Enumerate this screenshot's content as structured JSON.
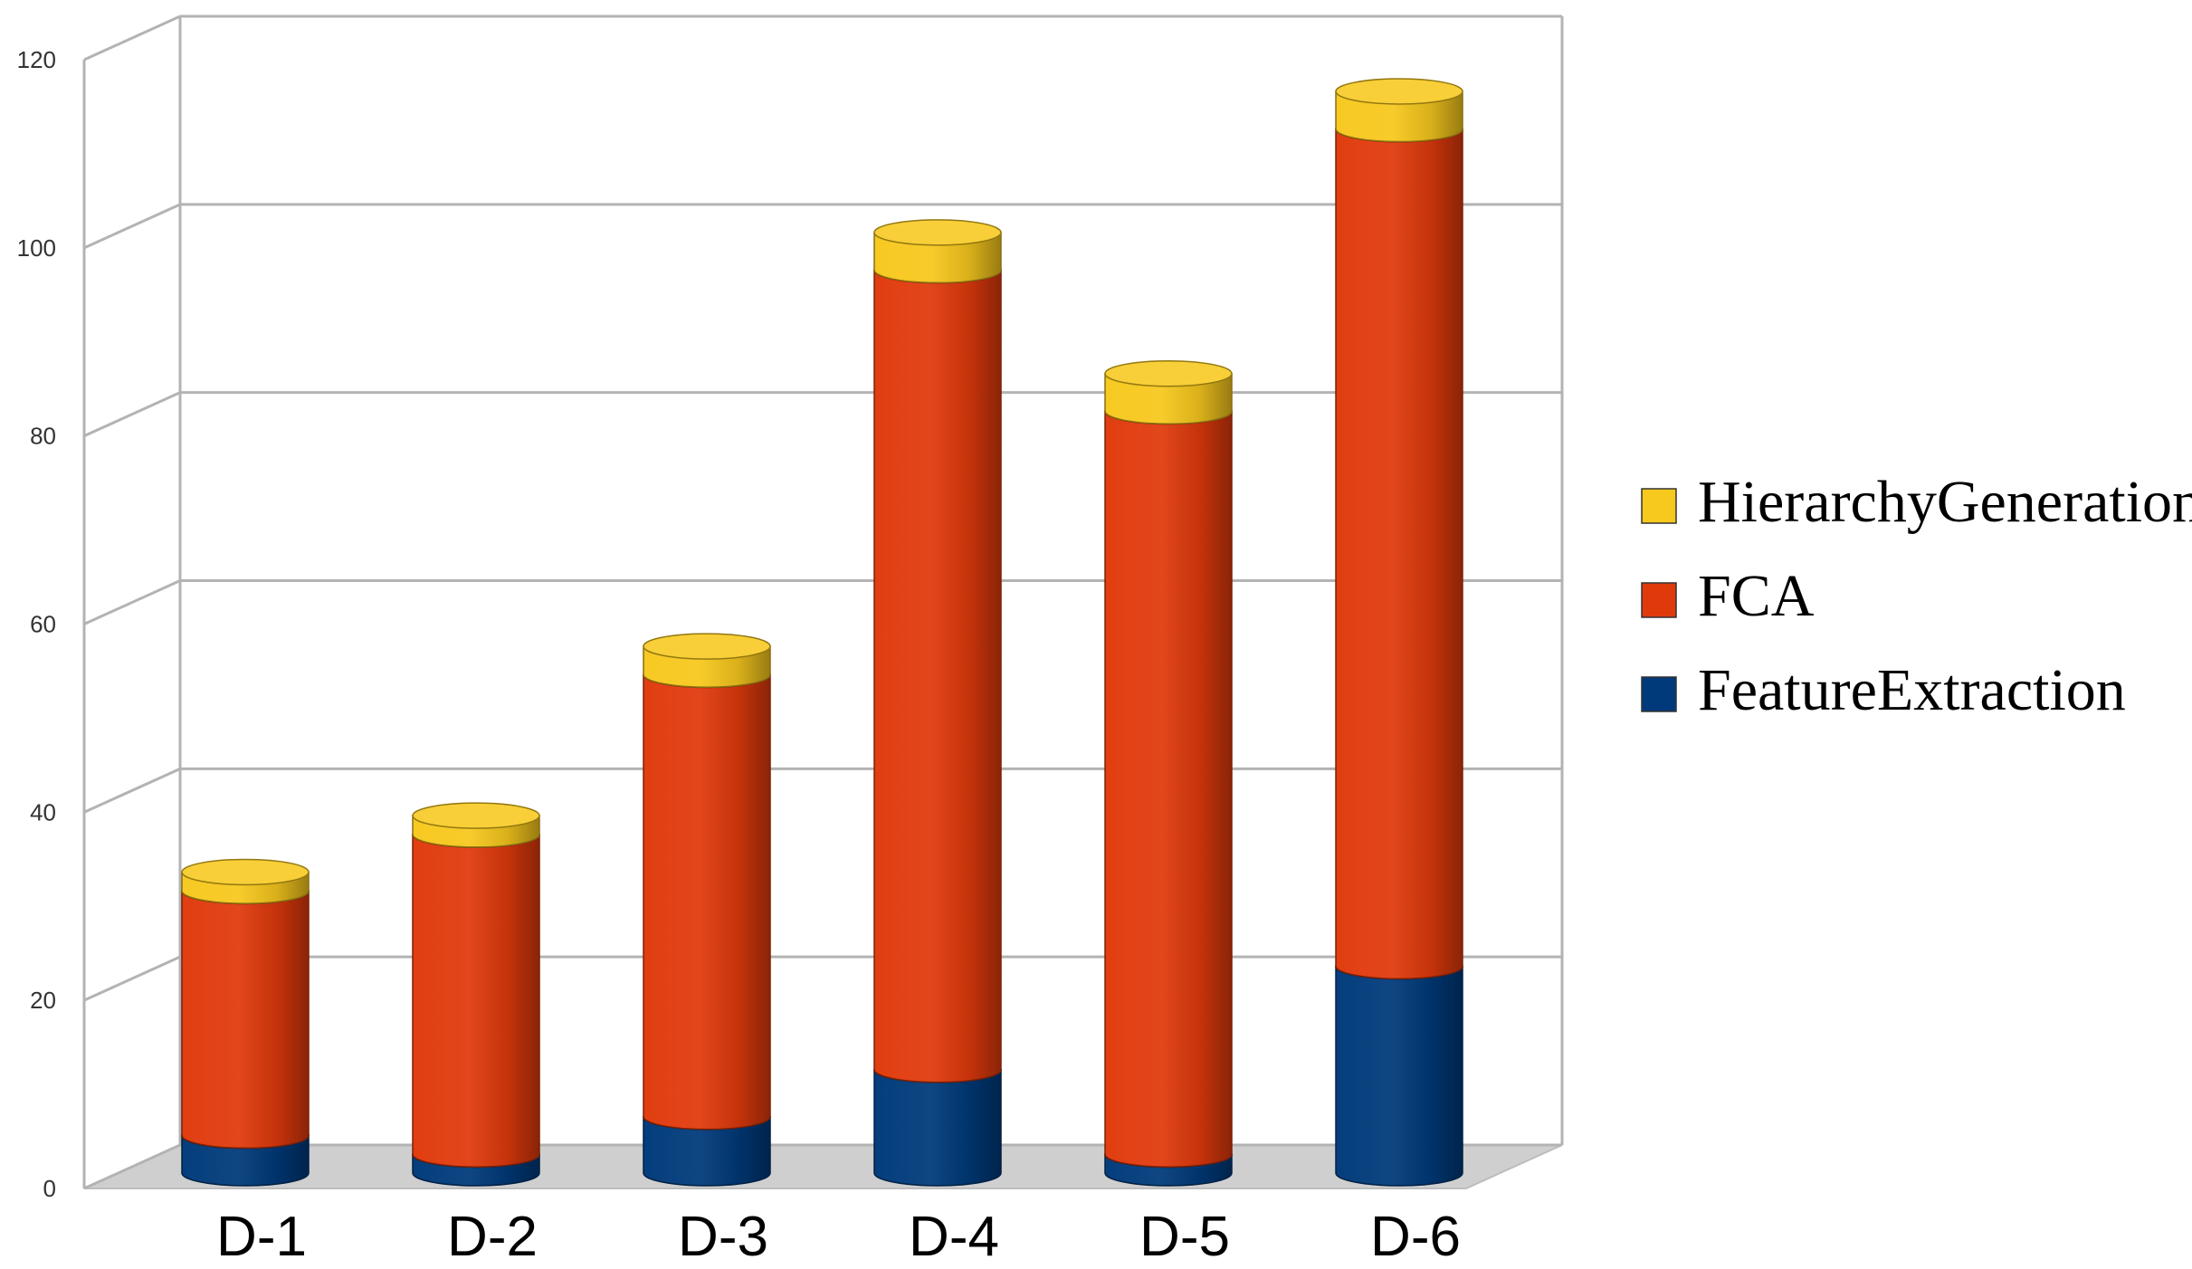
{
  "chart_data": {
    "type": "bar",
    "stacked": true,
    "three_d": true,
    "categories": [
      "D-1",
      "D-2",
      "D-3",
      "D-4",
      "D-5",
      "D-6"
    ],
    "series": [
      {
        "name": "FeatureExtraction",
        "color": "#003a7a",
        "values": [
          4,
          2,
          6,
          11,
          2,
          22
        ]
      },
      {
        "name": "FCA",
        "color": "#e03a0c",
        "values": [
          26,
          34,
          47,
          85,
          79,
          89
        ]
      },
      {
        "name": "HierarchyGeneration",
        "color": "#f7c81d",
        "values": [
          2,
          2,
          3,
          4,
          4,
          4
        ]
      }
    ],
    "y_ticks": [
      "0",
      "20",
      "40",
      "60",
      "80",
      "100",
      "120"
    ],
    "ylim": [
      0,
      120
    ],
    "grid": true,
    "legend": {
      "placement": "right",
      "order": [
        "HierarchyGeneration",
        "FCA",
        "FeatureExtraction"
      ]
    }
  }
}
